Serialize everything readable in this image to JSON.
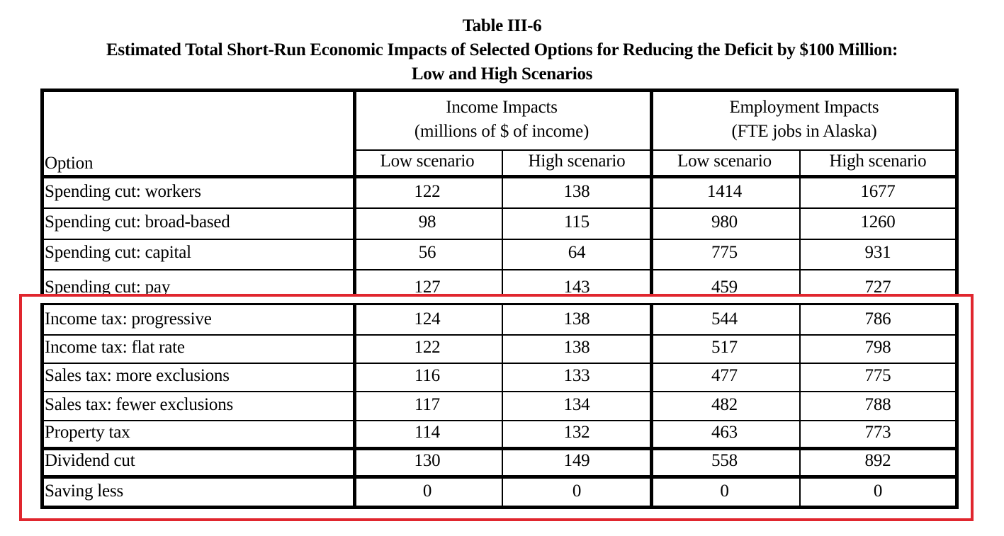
{
  "table": {
    "title": "Table III-6",
    "subtitle_line1": "Estimated Total Short-Run Economic Impacts of Selected Options for Reducing the Deficit by $100 Million:",
    "subtitle_line2": "Low and High Scenarios",
    "header": {
      "option": "Option",
      "income_group_line1": "Income Impacts",
      "income_group_line2": "(millions of $ of income)",
      "employment_group_line1": "Employment Impacts",
      "employment_group_line2": "(FTE jobs in Alaska)",
      "income_low": "Low scenario",
      "income_high": "High scenario",
      "employment_low": "Low scenario",
      "employment_high": "High scenario"
    },
    "rows": [
      {
        "option": "Spending cut: workers",
        "income_low": "122",
        "income_high": "138",
        "emp_low": "1414",
        "emp_high": "1677"
      },
      {
        "option": "Spending cut: broad-based",
        "income_low": "98",
        "income_high": "115",
        "emp_low": "980",
        "emp_high": "1260"
      },
      {
        "option": "Spending cut: capital",
        "income_low": "56",
        "income_high": "64",
        "emp_low": "775",
        "emp_high": "931"
      },
      {
        "option": "Spending cut: pay",
        "income_low": "127",
        "income_high": "143",
        "emp_low": "459",
        "emp_high": "727"
      },
      {
        "option": "Income tax: progressive",
        "income_low": "124",
        "income_high": "138",
        "emp_low": "544",
        "emp_high": "786"
      },
      {
        "option": "Income tax: flat rate",
        "income_low": "122",
        "income_high": "138",
        "emp_low": "517",
        "emp_high": "798"
      },
      {
        "option": "Sales tax: more exclusions",
        "income_low": "116",
        "income_high": "133",
        "emp_low": "477",
        "emp_high": "775"
      },
      {
        "option": "Sales tax: fewer exclusions",
        "income_low": "117",
        "income_high": "134",
        "emp_low": "482",
        "emp_high": "788"
      },
      {
        "option": "Property tax",
        "income_low": "114",
        "income_high": "132",
        "emp_low": "463",
        "emp_high": "773"
      },
      {
        "option": "Dividend cut",
        "income_low": "130",
        "income_high": "149",
        "emp_low": "558",
        "emp_high": "892"
      },
      {
        "option": "Saving less",
        "income_low": "0",
        "income_high": "0",
        "emp_low": "0",
        "emp_high": "0"
      }
    ]
  },
  "highlight": {
    "color": "#e0262e"
  }
}
